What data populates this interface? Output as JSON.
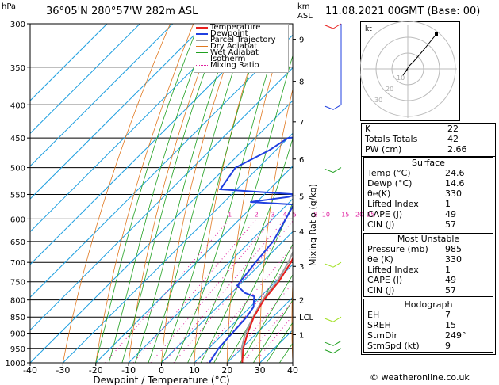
{
  "header": {
    "station": "36°05'N 280°57'W 282m ASL",
    "datetime": "11.08.2021 00GMT (Base: 00)",
    "hpa_label": "hPa",
    "km_label": "km",
    "asl_label": "ASL",
    "credit": "© weatheronline.co.uk"
  },
  "colors": {
    "temperature": "#e8201e",
    "dewpoint": "#2040e0",
    "parcel": "#a0a0a0",
    "dry_adiabat": "#e07820",
    "wet_adiabat": "#20a020",
    "isotherm": "#20a0e0",
    "mixing_ratio": "#e020a0"
  },
  "chart_data": {
    "type": "line",
    "title": "",
    "xlabel": "Dewpoint / Temperature (°C)",
    "ylabel": "",
    "right_axis_label": "Mixing Ratio (g/kg)",
    "xlim": [
      -40,
      40
    ],
    "ylim": [
      1000,
      300
    ],
    "x_ticks": [
      -40,
      -30,
      -20,
      -10,
      0,
      10,
      20,
      30,
      40
    ],
    "pressure_ticks": [
      300,
      350,
      400,
      450,
      500,
      550,
      600,
      650,
      700,
      750,
      800,
      850,
      900,
      950,
      1000
    ],
    "km_ticks": [
      {
        "label": "9",
        "p": 317
      },
      {
        "label": "8",
        "p": 368
      },
      {
        "label": "7",
        "p": 425
      },
      {
        "label": "6",
        "p": 485
      },
      {
        "label": "5",
        "p": 553
      },
      {
        "label": "4",
        "p": 627
      },
      {
        "label": "3",
        "p": 710
      },
      {
        "label": "2",
        "p": 800
      },
      {
        "label": "LCL",
        "p": 850
      },
      {
        "label": "1",
        "p": 905
      }
    ],
    "mixing_ratio_labels": [
      "1",
      "2",
      "3",
      "4",
      "5",
      "8",
      "10",
      "15",
      "20",
      "25"
    ],
    "mixing_ratio_values": [
      1,
      2,
      3,
      4,
      5,
      8,
      10,
      15,
      20,
      25
    ],
    "legend": [
      "Temperature",
      "Dewpoint",
      "Parcel Trajectory",
      "Dry Adiabat",
      "Wet Adiabat",
      "Isotherm",
      "Mixing Ratio"
    ],
    "series": [
      {
        "name": "Temperature",
        "points": [
          [
            1000,
            24.6
          ],
          [
            950,
            20.5
          ],
          [
            900,
            17.2
          ],
          [
            850,
            14.2
          ],
          [
            800,
            12.0
          ],
          [
            750,
            11.0
          ],
          [
            700,
            8.8
          ],
          [
            650,
            5.5
          ],
          [
            600,
            1.5
          ],
          [
            560,
            -2.5
          ],
          [
            550,
            -4.0
          ],
          [
            500,
            -8.0
          ],
          [
            450,
            -13.5
          ],
          [
            400,
            -20.0
          ],
          [
            350,
            -27.5
          ],
          [
            300,
            -36.5
          ]
        ]
      },
      {
        "name": "Dewpoint",
        "points": [
          [
            1000,
            14.6
          ],
          [
            950,
            13.0
          ],
          [
            900,
            12.5
          ],
          [
            850,
            12.0
          ],
          [
            820,
            11.0
          ],
          [
            790,
            8.0
          ],
          [
            780,
            4.0
          ],
          [
            760,
            -0.5
          ],
          [
            700,
            -2.0
          ],
          [
            650,
            -3.0
          ],
          [
            600,
            -6.0
          ],
          [
            570,
            -8.0
          ],
          [
            565,
            -22.0
          ],
          [
            555,
            -12.0
          ],
          [
            550,
            -10.0
          ],
          [
            540,
            -35.0
          ],
          [
            500,
            -37.0
          ],
          [
            470,
            -32.0
          ],
          [
            450,
            -30.0
          ],
          [
            440,
            -10.0
          ],
          [
            420,
            -30.0
          ],
          [
            405,
            -12.0
          ],
          [
            385,
            -30.0
          ],
          [
            320,
            -40.0
          ],
          [
            300,
            -37.0
          ]
        ]
      },
      {
        "name": "Parcel Trajectory",
        "points": [
          [
            1000,
            24.6
          ],
          [
            950,
            20.0
          ],
          [
            900,
            16.5
          ],
          [
            850,
            14.0
          ],
          [
            800,
            11.5
          ],
          [
            750,
            10.5
          ],
          [
            700,
            8.0
          ],
          [
            650,
            4.5
          ],
          [
            600,
            0.5
          ],
          [
            550,
            -4.0
          ],
          [
            500,
            -9.0
          ],
          [
            450,
            -14.5
          ],
          [
            400,
            -21.0
          ],
          [
            350,
            -28.5
          ],
          [
            300,
            -37.5
          ]
        ]
      }
    ]
  },
  "hodograph": {
    "unit_label": "kt",
    "ring_labels": [
      "10",
      "20",
      "30"
    ],
    "points": [
      [
        0,
        0
      ],
      [
        -3,
        -4
      ],
      [
        1,
        2
      ],
      [
        4,
        5
      ],
      [
        10,
        12
      ],
      [
        18,
        22
      ]
    ]
  },
  "indices": {
    "top": [
      {
        "label": "K",
        "value": "22"
      },
      {
        "label": "Totals Totals",
        "value": "42"
      },
      {
        "label": "PW (cm)",
        "value": "2.66"
      }
    ],
    "surface_title": "Surface",
    "surface": [
      {
        "label": "Temp (°C)",
        "value": "24.6"
      },
      {
        "label": "Dewp (°C)",
        "value": "14.6"
      },
      {
        "label": "θe(K)",
        "value": "330"
      },
      {
        "label": "Lifted Index",
        "value": "1"
      },
      {
        "label": "CAPE (J)",
        "value": "49"
      },
      {
        "label": "CIN (J)",
        "value": "57"
      }
    ],
    "unstable_title": "Most Unstable",
    "unstable": [
      {
        "label": "Pressure (mb)",
        "value": "985"
      },
      {
        "label": "θe (K)",
        "value": "330"
      },
      {
        "label": "Lifted Index",
        "value": "1"
      },
      {
        "label": "CAPE (J)",
        "value": "49"
      },
      {
        "label": "CIN (J)",
        "value": "57"
      }
    ],
    "hodo_title": "Hodograph",
    "hodo": [
      {
        "label": "EH",
        "value": "7"
      },
      {
        "label": "SREH",
        "value": "15"
      },
      {
        "label": "StmDir",
        "value": "249°"
      },
      {
        "label": "StmSpd (kt)",
        "value": "9"
      }
    ]
  }
}
